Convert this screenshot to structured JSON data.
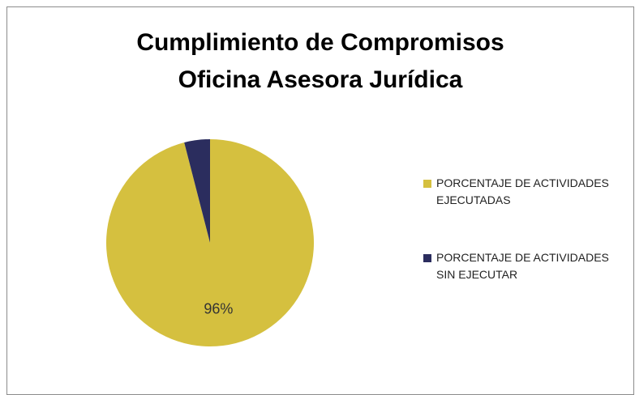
{
  "chart_data": {
    "type": "pie",
    "title": "Cumplimiento de Compromisos Oficina Asesora Jurídica",
    "categories": [
      "PORCENTAJE DE ACTIVIDADES EJECUTADAS",
      "PORCENTAJE DE ACTIVIDADES SIN EJECUTAR"
    ],
    "values": [
      96,
      4
    ],
    "value_labels": [
      "96%",
      null
    ],
    "colors": [
      "#d5c03f",
      "#2b2d5e"
    ],
    "legend": "right"
  }
}
